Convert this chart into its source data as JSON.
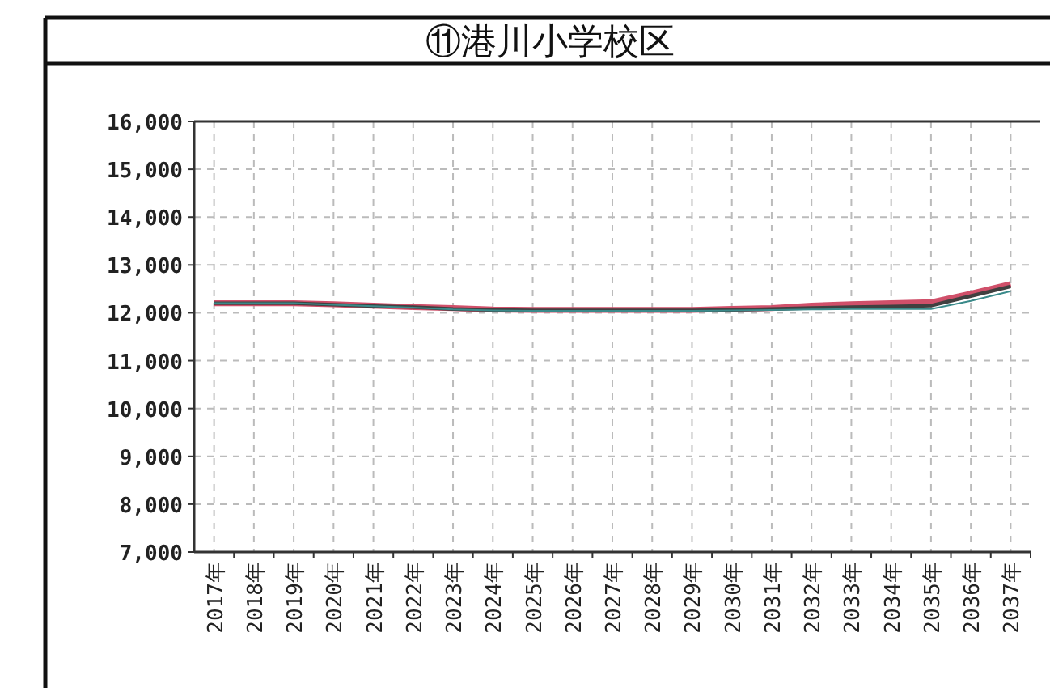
{
  "chart_data": {
    "type": "line",
    "title": "⑪港川小学校区",
    "categories": [
      "2017年",
      "2018年",
      "2019年",
      "2020年",
      "2021年",
      "2022年",
      "2023年",
      "2024年",
      "2025年",
      "2026年",
      "2027年",
      "2028年",
      "2029年",
      "2030年",
      "2031年",
      "2032年",
      "2033年",
      "2034年",
      "2035年",
      "2036年",
      "2037年"
    ],
    "series": [
      {
        "color": "#d0506a",
        "values": [
          12200,
          12200,
          12200,
          12180,
          12150,
          12120,
          12100,
          12070,
          12060,
          12060,
          12060,
          12060,
          12060,
          12080,
          12100,
          12150,
          12180,
          12200,
          12220,
          12400,
          12600
        ]
      },
      {
        "color": "#404040",
        "values": [
          12200,
          12200,
          12200,
          12170,
          12140,
          12120,
          12080,
          12060,
          12050,
          12050,
          12050,
          12050,
          12050,
          12060,
          12080,
          12100,
          12120,
          12130,
          12150,
          12350,
          12550
        ]
      },
      {
        "color": "#3a8a8a",
        "values": [
          12200,
          12200,
          12200,
          12170,
          12140,
          12110,
          12070,
          12050,
          12040,
          12040,
          12040,
          12040,
          12040,
          12050,
          12060,
          12070,
          12080,
          12080,
          12080,
          12250,
          12450
        ]
      }
    ],
    "ylim": [
      7000,
      16000
    ],
    "yticks": [
      {
        "value": 7000,
        "label": "7,000"
      },
      {
        "value": 8000,
        "label": "8,000"
      },
      {
        "value": 9000,
        "label": "9,000"
      },
      {
        "value": 10000,
        "label": "10,000"
      },
      {
        "value": 11000,
        "label": "11,000"
      },
      {
        "value": 12000,
        "label": "12,000"
      },
      {
        "value": 13000,
        "label": "13,000"
      },
      {
        "value": 14000,
        "label": "14,000"
      },
      {
        "value": 15000,
        "label": "15,000"
      },
      {
        "value": 16000,
        "label": "16,000"
      }
    ],
    "grid": true,
    "marker": "none",
    "line_style": "solid"
  }
}
